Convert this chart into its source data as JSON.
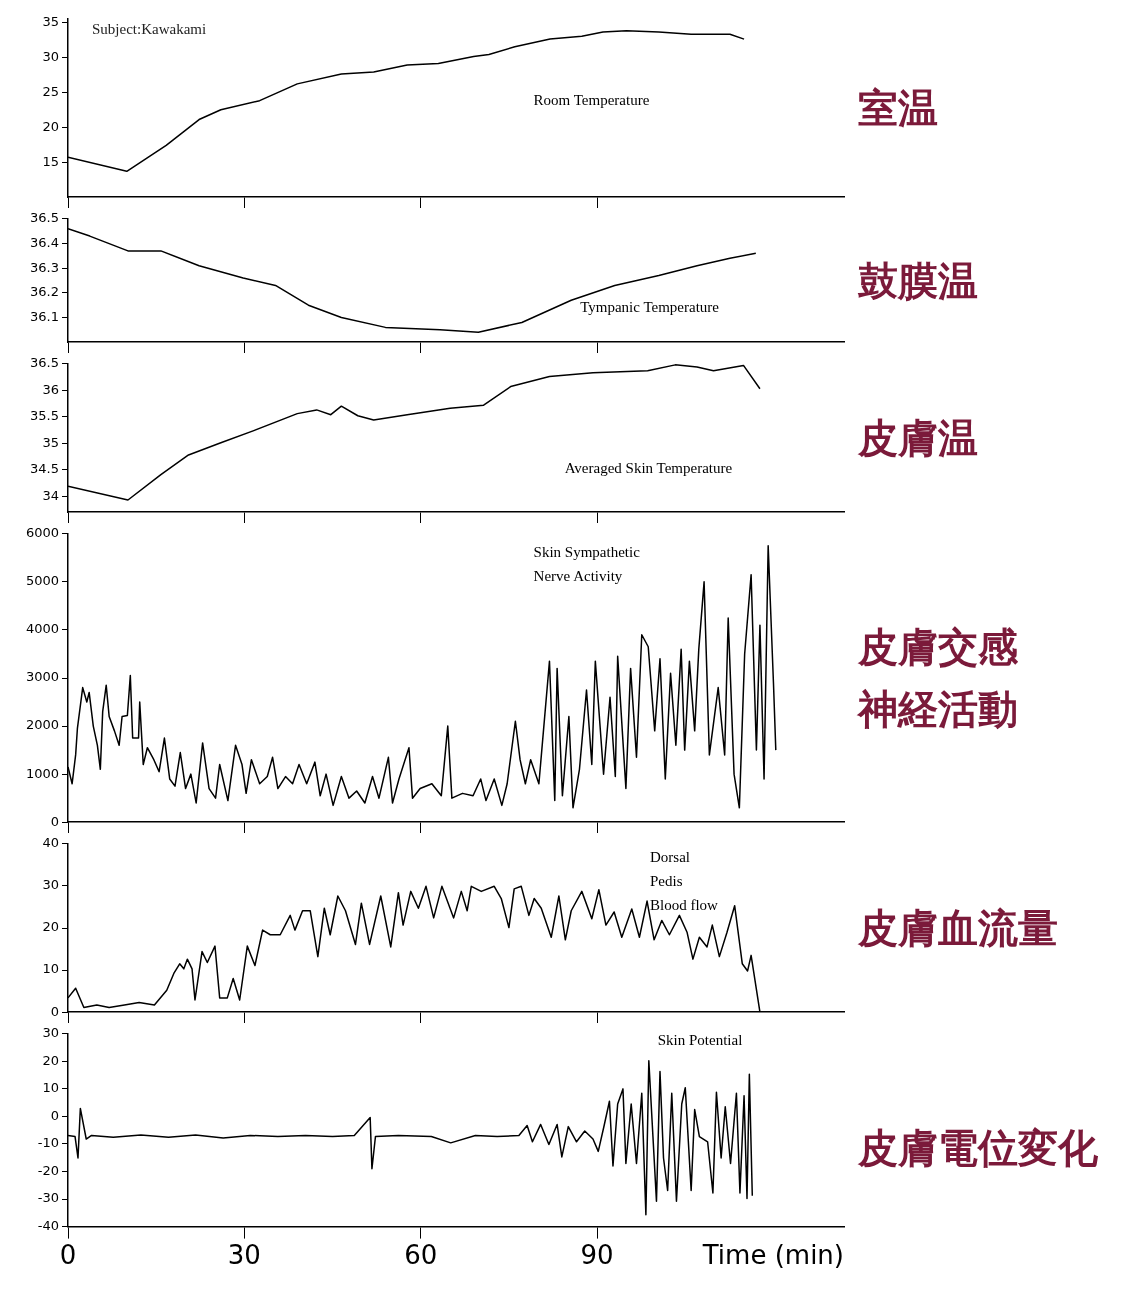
{
  "chart_data": [
    {
      "type": "line",
      "title": "室温",
      "annotations": [
        "Subject:Kawakami"
      ],
      "xlim": [
        0,
        132
      ],
      "xticks": [
        0,
        30,
        60,
        90
      ],
      "ylim": [
        10,
        35.5
      ],
      "yticks": [
        15,
        20,
        25,
        30,
        35
      ],
      "tick_labels": "y",
      "x": [
        0,
        10,
        16.7,
        22.3,
        26,
        32.6,
        39,
        46.5,
        52,
        57.7,
        63,
        69,
        71.6,
        76,
        82,
        87.4,
        91,
        95,
        100.5,
        106,
        112.6,
        115
      ],
      "series": [
        {
          "name": "Room Temperature",
          "color": "#000000",
          "values": [
            15.7,
            13.7,
            17.4,
            21.1,
            22.5,
            23.8,
            26.2,
            27.6,
            27.9,
            28.9,
            29.1,
            30.1,
            30.4,
            31.5,
            32.6,
            33.0,
            33.6,
            33.8,
            33.6,
            33.3,
            33.3,
            32.6
          ]
        }
      ]
    },
    {
      "type": "line",
      "title": "鼓膜温",
      "xlim": [
        0,
        132
      ],
      "xticks": [
        0,
        30,
        60,
        90
      ],
      "ylim": [
        36,
        36.5
      ],
      "yticks": [
        36.1,
        36.2,
        36.3,
        36.4,
        36.5
      ],
      "tick_labels": "y",
      "x": [
        0,
        3.7,
        10.2,
        15.8,
        22.3,
        29.8,
        35.3,
        40.9,
        46.5,
        54,
        63.3,
        69.8,
        77.2,
        85.6,
        93,
        100.5,
        107,
        112.6,
        117
      ],
      "series": [
        {
          "name": "Tympanic Temperature",
          "color": "#000000",
          "values": [
            36.46,
            36.43,
            36.37,
            36.37,
            36.31,
            36.26,
            36.23,
            36.15,
            36.1,
            36.06,
            36.05,
            36.04,
            36.08,
            36.17,
            36.23,
            36.27,
            36.31,
            36.34,
            36.36
          ]
        }
      ]
    },
    {
      "type": "line",
      "title": "皮膚温",
      "xlim": [
        0,
        132
      ],
      "xticks": [
        0,
        30,
        60,
        90
      ],
      "ylim": [
        33.7,
        36.5
      ],
      "yticks": [
        34,
        34.5,
        35,
        35.5,
        36,
        36.5
      ],
      "tick_labels": "y",
      "x": [
        0,
        10.2,
        15.8,
        20.5,
        26,
        31.6,
        39,
        42.3,
        44.7,
        46.5,
        49.3,
        52,
        57.7,
        65,
        70.7,
        75.3,
        81.9,
        89.3,
        98.6,
        103.3,
        107,
        109.8,
        114.9,
        117.7
      ],
      "series": [
        {
          "name": "Averaged Skin Temperature",
          "color": "#000000",
          "values": [
            34.19,
            33.93,
            34.41,
            34.78,
            35.01,
            35.24,
            35.56,
            35.63,
            35.54,
            35.7,
            35.52,
            35.44,
            35.54,
            35.66,
            35.72,
            36.07,
            36.26,
            36.33,
            36.37,
            36.48,
            36.44,
            36.37,
            36.47,
            36.03
          ]
        }
      ]
    },
    {
      "type": "line",
      "title": "皮膚交感神経活動",
      "xlim": [
        0,
        132
      ],
      "xticks": [
        0,
        30,
        60,
        90
      ],
      "ylim": [
        0,
        6000
      ],
      "yticks": [
        0,
        1000,
        2000,
        3000,
        4000,
        5000,
        6000
      ],
      "tick_labels": "y",
      "x": [
        0,
        0.7,
        1.3,
        1.6,
        2.5,
        3.2,
        3.6,
        4.3,
        5,
        5.5,
        5.9,
        6.5,
        7,
        7.9,
        8.7,
        9.2,
        10.1,
        10.6,
        11,
        12,
        12.2,
        12.8,
        13.5,
        14.6,
        15.5,
        16.4,
        17.3,
        18.2,
        19.1,
        20,
        20.9,
        21.8,
        22.9,
        24,
        25.1,
        25.8,
        27.2,
        28.5,
        29.6,
        30.3,
        31.2,
        32.6,
        33.9,
        34.8,
        35.7,
        37,
        38.2,
        39.3,
        40.6,
        42,
        42.9,
        43.9,
        45.1,
        46.5,
        47.8,
        49.1,
        50.5,
        51.8,
        52.9,
        54.5,
        55.2,
        56.3,
        58,
        58.6,
        59.9,
        61.9,
        63.5,
        64.6,
        65.3,
        67.1,
        68.9,
        70.2,
        71.1,
        72.5,
        73.8,
        74.7,
        76.1,
        76.9,
        77.8,
        78.7,
        80.1,
        81.9,
        82.8,
        83.2,
        84.1,
        85.2,
        85.9,
        87,
        88.2,
        89.1,
        89.7,
        91.1,
        92.2,
        93.1,
        93.5,
        94.9,
        95.7,
        96.7,
        97.6,
        98.7,
        99.8,
        100.7,
        101.6,
        102.5,
        103.4,
        104.3,
        104.9,
        105.7,
        106.6,
        107.3,
        108.2,
        109.1,
        110.6,
        111.7,
        112.3,
        113.3,
        114.2,
        115.1,
        116.2,
        117.1,
        117.7,
        118.4,
        119.1,
        120,
        120.4
      ],
      "series": [
        {
          "name": "Skin Sympathetic Nerve Activity",
          "color": "#000000",
          "values": [
            1150,
            800,
            1400,
            1950,
            2800,
            2500,
            2700,
            2000,
            1600,
            1100,
            2300,
            2850,
            2200,
            1900,
            1600,
            2200,
            2220,
            3050,
            1750,
            1750,
            2500,
            1200,
            1550,
            1300,
            1050,
            1750,
            900,
            750,
            1450,
            700,
            1000,
            400,
            1650,
            700,
            500,
            1200,
            450,
            1600,
            1200,
            600,
            1300,
            800,
            950,
            1350,
            700,
            950,
            800,
            1200,
            800,
            1250,
            550,
            1000,
            350,
            950,
            500,
            650,
            400,
            950,
            500,
            1350,
            400,
            900,
            1550,
            500,
            700,
            800,
            550,
            2000,
            500,
            600,
            550,
            900,
            450,
            900,
            350,
            800,
            2100,
            1300,
            800,
            1300,
            800,
            3350,
            450,
            3200,
            550,
            2200,
            300,
            1100,
            2750,
            1200,
            3350,
            1000,
            2600,
            950,
            3450,
            700,
            3200,
            1350,
            3900,
            3650,
            1900,
            3400,
            900,
            3100,
            1600,
            3600,
            1500,
            3350,
            1900,
            3600,
            5000,
            1400,
            2800,
            1400,
            4250,
            1000,
            300,
            3500,
            5150,
            1500,
            4100,
            900,
            5750,
            2900,
            1500
          ]
        }
      ]
    },
    {
      "type": "line",
      "title": "皮膚血流量",
      "xlim": [
        0,
        132
      ],
      "xticks": [
        0,
        30,
        60,
        90
      ],
      "ylim": [
        0,
        40
      ],
      "yticks": [
        0,
        10,
        20,
        30,
        40
      ],
      "tick_labels": "y",
      "x": [
        0,
        1.3,
        2.7,
        4.9,
        7,
        9.6,
        12.1,
        14.7,
        16.8,
        18,
        19,
        19.7,
        20.3,
        21.1,
        21.6,
        22.8,
        23.7,
        25,
        25.8,
        27.1,
        28.1,
        29.2,
        30.5,
        31.8,
        33.1,
        34.4,
        36.1,
        37.8,
        38.6,
        39.9,
        41.2,
        42.5,
        43.6,
        44.6,
        45.9,
        47.2,
        48.9,
        49.9,
        51.3,
        53.2,
        54.9,
        56.2,
        57,
        58.3,
        59.6,
        60.9,
        62.2,
        63.6,
        65.6,
        66.9,
        67.9,
        68.6,
        70.3,
        72.5,
        73.7,
        75,
        75.9,
        77.1,
        78.4,
        79.3,
        80.5,
        82.2,
        83.5,
        84.6,
        85.6,
        87.4,
        89.1,
        90.3,
        91.5,
        92.9,
        94.2,
        95.9,
        97.2,
        98.5,
        99.7,
        101,
        102.3,
        104,
        105.3,
        106.3,
        107.4,
        108.7,
        109.6,
        110.8,
        112.1,
        113.4,
        114.7,
        115.6,
        116.2,
        117.7
      ],
      "series": [
        {
          "name": "Dorsal Pedis Blood flow",
          "color": "#000000",
          "values": [
            3.4,
            5.7,
            1.1,
            1.7,
            1.1,
            1.7,
            2.3,
            1.7,
            5.2,
            9.2,
            11.5,
            10.3,
            12.6,
            10.3,
            2.9,
            14.4,
            11.8,
            15.7,
            3.4,
            3.4,
            8,
            2.9,
            15.7,
            11.1,
            19.5,
            18.4,
            18.4,
            23,
            19.5,
            24.1,
            24.1,
            13.2,
            24.7,
            18.4,
            27.6,
            24.1,
            16.1,
            25.9,
            16.1,
            27.6,
            15.5,
            28.4,
            20.7,
            28.7,
            24.7,
            29.9,
            22.4,
            29.9,
            22.4,
            28.7,
            24.1,
            29.9,
            28.7,
            29.9,
            27,
            20.1,
            29.3,
            29.9,
            23,
            27,
            24.7,
            17.8,
            27.6,
            17.2,
            24.1,
            28.7,
            22.2,
            29.1,
            20.7,
            23.8,
            17.8,
            24.5,
            17.8,
            26.4,
            17.2,
            21.8,
            18.4,
            23,
            19,
            12.6,
            17.8,
            15.5,
            20.7,
            13.2,
            19,
            25.3,
            11.5,
            9.8,
            13.5,
            0
          ]
        }
      ]
    },
    {
      "type": "line",
      "title": "皮膚電位変化",
      "xlabel": "Time (min)",
      "xlim": [
        0,
        132
      ],
      "xticks": [
        0,
        30,
        60,
        90
      ],
      "ylim": [
        -40,
        30
      ],
      "yticks": [
        -40,
        -30,
        -20,
        -10,
        0,
        10,
        20,
        30
      ],
      "x": [
        0,
        1.2,
        1.7,
        2.1,
        3.1,
        4,
        7.7,
        12.4,
        17.1,
        21.7,
        26.4,
        31,
        35.7,
        40.4,
        45,
        48.7,
        51.4,
        51.7,
        52.3,
        56.2,
        61.8,
        65.1,
        69.3,
        73,
        76.7,
        78.1,
        79,
        80.4,
        81.8,
        83.2,
        84,
        85.1,
        86.5,
        87.9,
        89.3,
        90.2,
        91.2,
        92.1,
        92.7,
        93.5,
        94.4,
        94.9,
        95.8,
        96.7,
        97.6,
        98.3,
        98.8,
        99.5,
        100.1,
        100.7,
        101.3,
        102,
        102.7,
        103.5,
        104.4,
        105,
        106,
        106.6,
        107.4,
        108.8,
        109.7,
        110.3,
        111.1,
        111.8,
        112.7,
        113.7,
        114.3,
        115,
        115.5,
        115.9,
        116.4
      ],
      "series": [
        {
          "name": "Skin Potential",
          "color": "#000000",
          "values": [
            -6.9,
            -7.3,
            -15.1,
            2.9,
            -8.2,
            -6.9,
            -7.6,
            -6.7,
            -7.6,
            -6.7,
            -7.8,
            -6.9,
            -7.3,
            -6.9,
            -7.3,
            -6.9,
            -0.4,
            -19,
            -7.3,
            -6.9,
            -7.3,
            -9.6,
            -6.9,
            -7.3,
            -6.9,
            -3.3,
            -9.2,
            -2.9,
            -10.2,
            -2.9,
            -14.7,
            -3.7,
            -9.2,
            -5.3,
            -8.2,
            -12.7,
            -3.3,
            5.5,
            -18,
            4.5,
            10,
            -17.1,
            4.5,
            -17.1,
            8.4,
            -35.7,
            20.2,
            -7.3,
            -30.8,
            16.3,
            -15.1,
            -26.9,
            8.4,
            -30.8,
            4.5,
            10.4,
            -26.9,
            2.5,
            -7.3,
            -9.2,
            -27.8,
            8.8,
            -15.1,
            3.5,
            -17.1,
            8.4,
            -27.8,
            7.5,
            -29.8,
            15.3,
            -28.8
          ]
        }
      ]
    }
  ]
}
